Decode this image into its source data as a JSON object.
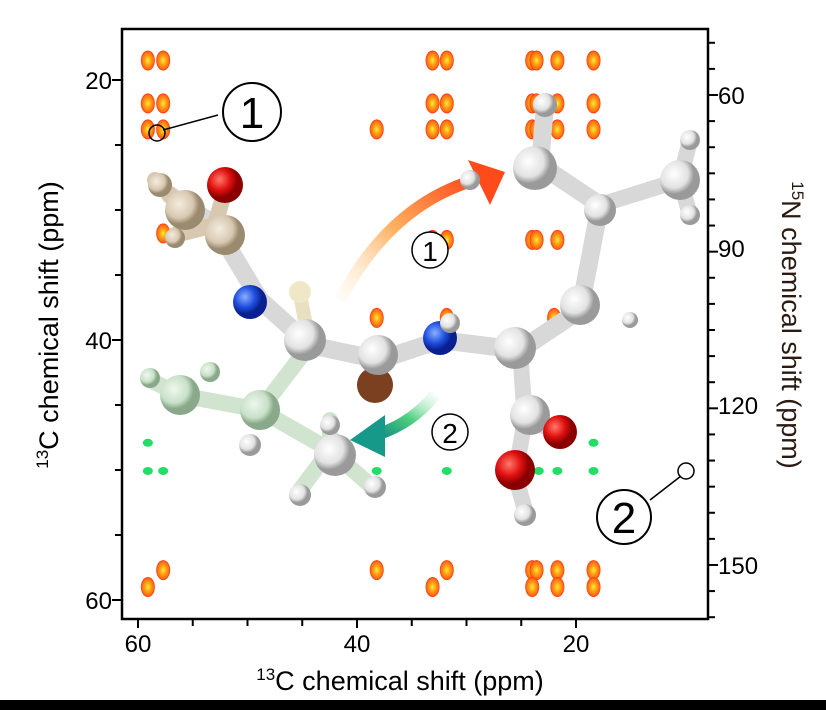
{
  "chart_data": {
    "type": "scatter",
    "title": "",
    "xlabel_sup": "13",
    "xlabel": "C chemical shift (ppm)",
    "ylabel_left_sup": "13",
    "ylabel_left": "C chemical shift (ppm)",
    "ylabel_right_sup": "15",
    "ylabel_right": "N chemical shift (ppm)",
    "xlim": [
      61.5,
      16
    ],
    "ylim_left": [
      16,
      61.5
    ],
    "ylim_right": [
      47,
      161
    ],
    "x_ticks": [
      60,
      40,
      20
    ],
    "y_left_ticks": [
      20,
      40,
      60
    ],
    "y_right_ticks": [
      60,
      90,
      120,
      150
    ],
    "grid": false,
    "colors": {
      "carbon_peaks": "#ff9a1a",
      "carbon_peak_edge": "#ff2a10",
      "carbon_peak_core": "#ffee30",
      "nitrogen_peaks": "#22dd66",
      "arrow_1": "#ff5a20",
      "arrow_2": "#17998a"
    },
    "series": [
      {
        "axis": "left",
        "color": "#ff9a1a",
        "points": [
          [
            59.1,
            18.5
          ],
          [
            57.7,
            18.5
          ],
          [
            33.1,
            18.5
          ],
          [
            31.8,
            18.5
          ],
          [
            24.0,
            18.5
          ],
          [
            23.6,
            18.5
          ],
          [
            21.7,
            18.5
          ],
          [
            18.4,
            18.5
          ],
          [
            59.1,
            21.8
          ],
          [
            57.7,
            21.8
          ],
          [
            33.1,
            21.8
          ],
          [
            31.8,
            21.8
          ],
          [
            24.0,
            21.8
          ],
          [
            23.6,
            21.8
          ],
          [
            21.7,
            21.8
          ],
          [
            18.4,
            21.8
          ],
          [
            59.1,
            23.8
          ],
          [
            57.7,
            23.8
          ],
          [
            38.2,
            23.8
          ],
          [
            33.1,
            23.8
          ],
          [
            31.8,
            23.8
          ],
          [
            24.0,
            23.8
          ],
          [
            23.6,
            23.8
          ],
          [
            21.7,
            23.8
          ],
          [
            18.4,
            23.8
          ],
          [
            57.7,
            31.8
          ],
          [
            33.1,
            32.3
          ],
          [
            31.8,
            32.3
          ],
          [
            24.0,
            32.3
          ],
          [
            23.6,
            32.3
          ],
          [
            21.7,
            32.3
          ],
          [
            18.4,
            32.3
          ],
          [
            38.2,
            38.3
          ],
          [
            31.8,
            38.3
          ],
          [
            22.0,
            38.3
          ],
          [
            57.7,
            57.7
          ],
          [
            38.2,
            57.7
          ],
          [
            31.8,
            57.7
          ],
          [
            24.0,
            57.7
          ],
          [
            23.6,
            57.7
          ],
          [
            21.7,
            57.7
          ],
          [
            18.4,
            57.7
          ],
          [
            59.1,
            59.0
          ],
          [
            33.1,
            59.0
          ],
          [
            24.0,
            59.0
          ],
          [
            21.7,
            59.0
          ],
          [
            18.4,
            59.0
          ]
        ]
      },
      {
        "axis": "right",
        "color": "#22dd66",
        "points": [
          [
            59.1,
            126.6
          ],
          [
            31.8,
            126.6
          ],
          [
            21.7,
            126.6
          ],
          [
            18.4,
            126.6
          ],
          [
            59.1,
            132.0
          ],
          [
            57.7,
            132.0
          ],
          [
            38.2,
            132.0
          ],
          [
            31.8,
            132.0
          ],
          [
            24.1,
            132.0
          ],
          [
            23.4,
            132.0
          ],
          [
            21.7,
            132.0
          ],
          [
            18.4,
            132.0
          ]
        ]
      }
    ],
    "annotations": [
      {
        "label": "1",
        "x": 59.1,
        "y": 23.8,
        "axis": "left"
      },
      {
        "label": "2",
        "x": 18.4,
        "y": 132.0,
        "axis": "right"
      },
      {
        "label": "1",
        "type": "transfer-arrow"
      },
      {
        "label": "2",
        "type": "transfer-arrow"
      }
    ]
  }
}
